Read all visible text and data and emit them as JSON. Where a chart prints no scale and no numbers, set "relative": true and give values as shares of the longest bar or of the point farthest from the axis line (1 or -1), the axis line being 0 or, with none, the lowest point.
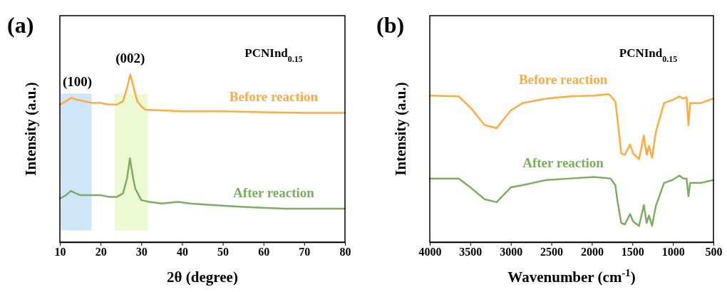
{
  "chart_data": [
    {
      "type": "line",
      "title": "(a)",
      "xlabel": "2θ (degree)",
      "ylabel": "Intensity (a.u.)",
      "relative": true,
      "xlim": [
        10,
        80
      ],
      "xticks": [
        10,
        20,
        30,
        40,
        50,
        60,
        70,
        80
      ],
      "bands": [
        {
          "axis": "x",
          "from": 10.2,
          "to": 17.8,
          "color": "#cfe5f8"
        },
        {
          "axis": "x",
          "from": 23.5,
          "to": 31.6,
          "color": "#ecf9d3"
        }
      ],
      "annotations": [
        {
          "text": "(100)",
          "x": 13,
          "y": 0.86
        },
        {
          "text": "(002)",
          "x": 27.3,
          "y": 1.0
        },
        "PCNInd$_{0.15}$"
      ],
      "series": [
        {
          "name": "Before reaction",
          "color": "#ffab40",
          "x": [
            10,
            11.5,
            12.8,
            14,
            16,
            18,
            20,
            22,
            24,
            25.5,
            26.5,
            27.3,
            28,
            29,
            30,
            31,
            35,
            40,
            50,
            60,
            70,
            80
          ],
          "values": [
            0.82,
            0.84,
            0.86,
            0.85,
            0.84,
            0.83,
            0.83,
            0.82,
            0.82,
            0.84,
            0.92,
            1.0,
            0.93,
            0.84,
            0.81,
            0.79,
            0.785,
            0.78,
            0.78,
            0.775,
            0.77,
            0.77
          ]
        },
        {
          "name": "After reaction",
          "color": "#7dad62",
          "x": [
            10,
            11.5,
            12.7,
            14,
            15,
            18,
            20,
            22,
            24,
            25.5,
            26.5,
            27.2,
            28,
            28.5,
            30,
            32,
            35,
            39,
            42,
            45,
            55,
            65,
            80
          ],
          "values": [
            0.26,
            0.28,
            0.305,
            0.29,
            0.28,
            0.28,
            0.28,
            0.27,
            0.27,
            0.29,
            0.38,
            0.5,
            0.38,
            0.32,
            0.25,
            0.24,
            0.23,
            0.24,
            0.23,
            0.225,
            0.21,
            0.2,
            0.2
          ]
        }
      ]
    },
    {
      "type": "line",
      "title": "(b)",
      "xlabel": "Wavenumber (cm$^{-1}$)",
      "ylabel": "Intensity (a.u.)",
      "relative": true,
      "xlim": [
        4000,
        500
      ],
      "xticks": [
        4000,
        3500,
        3000,
        2500,
        2000,
        1500,
        1000,
        500
      ],
      "annotations": [
        "PCNInd$_{0.15}$"
      ],
      "series": [
        {
          "name": "Before reaction",
          "color": "#ffab40",
          "x": [
            4000,
            3645,
            3499,
            3323,
            3176,
            3000,
            2854,
            2561,
            2268,
            1975,
            1800,
            1770,
            1711,
            1682,
            1638,
            1594,
            1529,
            1491,
            1418,
            1359,
            1324,
            1295,
            1257,
            1213,
            1110,
            1007,
            920,
            875,
            832,
            808,
            788,
            656,
            500
          ],
          "values": [
            0.99,
            0.985,
            0.91,
            0.79,
            0.77,
            0.89,
            0.94,
            0.97,
            0.985,
            0.99,
            1.0,
            0.99,
            0.95,
            0.82,
            0.6,
            0.59,
            0.66,
            0.6,
            0.56,
            0.72,
            0.59,
            0.65,
            0.57,
            0.74,
            0.94,
            0.96,
            0.985,
            0.97,
            0.98,
            0.79,
            0.94,
            0.94,
            0.97
          ]
        },
        {
          "name": "After reaction",
          "color": "#7dad62",
          "x": [
            4000,
            3645,
            3499,
            3323,
            3176,
            3000,
            2854,
            2561,
            2268,
            1975,
            1770,
            1711,
            1682,
            1638,
            1594,
            1529,
            1491,
            1418,
            1359,
            1324,
            1295,
            1257,
            1213,
            1110,
            1007,
            920,
            875,
            832,
            808,
            788,
            656,
            500
          ],
          "values": [
            0.43,
            0.43,
            0.37,
            0.29,
            0.27,
            0.37,
            0.385,
            0.42,
            0.43,
            0.44,
            0.43,
            0.385,
            0.27,
            0.13,
            0.12,
            0.19,
            0.14,
            0.11,
            0.25,
            0.13,
            0.18,
            0.11,
            0.24,
            0.4,
            0.42,
            0.45,
            0.43,
            0.43,
            0.31,
            0.4,
            0.4,
            0.42
          ]
        }
      ]
    }
  ]
}
